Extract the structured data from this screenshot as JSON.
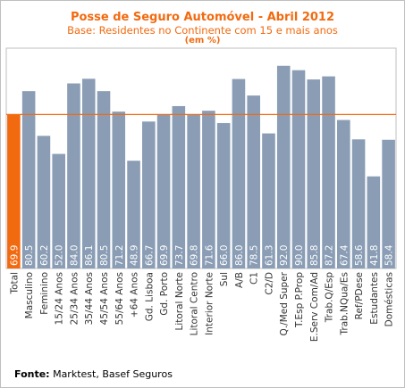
{
  "header": {
    "title": "Posse de Seguro Automóvel - Abril 2012",
    "subtitle": "Base: Residentes no Continente com 15 e mais anos",
    "unit_note": "(em %)"
  },
  "footer": {
    "source_label": "Fonte:",
    "source_text": "Marktest, Basef Seguros"
  },
  "colors": {
    "bar": "#8a9db5",
    "highlight_bar": "#f26a10",
    "reference_line": "#f26a10",
    "plot_border": "#bfbfbf"
  },
  "chart_data": {
    "type": "bar",
    "title": "Posse de Seguro Automóvel - Abril 2012",
    "subtitle": "Base: Residentes no Continente com 15 e mais anos",
    "xlabel": "",
    "ylabel": "",
    "ylim": [
      0,
      100
    ],
    "grid": false,
    "legend": "none",
    "highlight_category": "Total",
    "reference_value": 69.9,
    "categories": [
      "Total",
      "Masculino",
      "Feminino",
      "15/24 Anos",
      "25/34 Anos",
      "35/44 Anos",
      "45/54 Anos",
      "55/64 Anos",
      "+64 Anos",
      "Gd. Lisboa",
      "Gd. Porto",
      "Litoral Norte",
      "Litoral Centro",
      "Interior Norte",
      "Sul",
      "A/B",
      "C1",
      "C2/D",
      "Q./Med Super",
      "T.Esp P.Prop",
      "E.Serv Com/Ad",
      "Trab.Q/Esp",
      "Trab.NQua/Es",
      "Ref/PDese",
      "Estudantes",
      "Domésticas"
    ],
    "values": [
      69.9,
      80.5,
      60.2,
      52.0,
      84.0,
      86.1,
      80.5,
      71.2,
      48.9,
      66.7,
      69.9,
      73.7,
      69.8,
      71.6,
      66.0,
      86.0,
      78.5,
      61.3,
      92.0,
      90.0,
      85.8,
      87.2,
      67.4,
      58.6,
      41.8,
      58.4
    ]
  }
}
